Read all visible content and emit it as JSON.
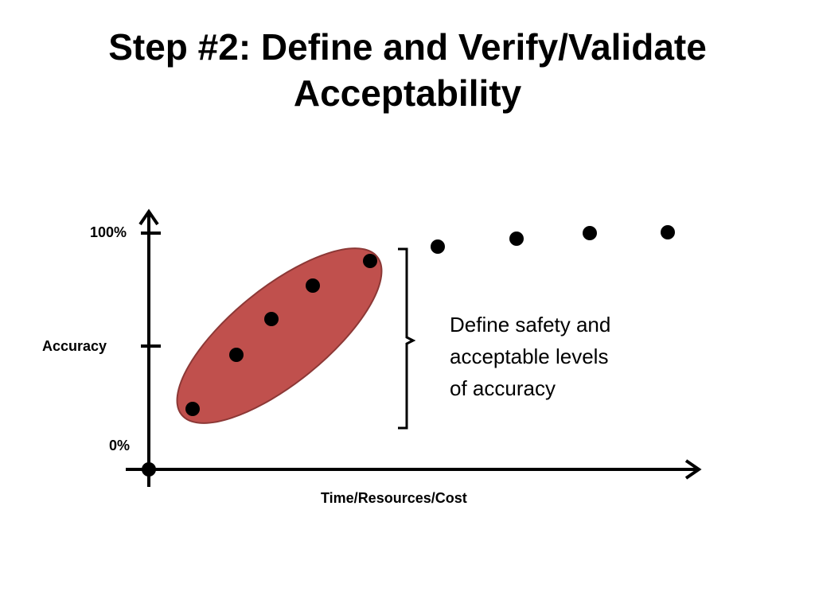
{
  "slide": {
    "title_line1": "Step #2: Define and Verify/Validate",
    "title_line2": "Acceptability"
  },
  "diagram": {
    "y_label": "Accuracy",
    "x_label": "Time/Resources/Cost",
    "y_tick_top": "100%",
    "y_tick_bottom": "0%",
    "note_lines": [
      "Define safety and",
      "acceptable levels",
      "of accuracy"
    ],
    "highlight_color": "#c0504d",
    "highlight_border": "#8c3836",
    "point_color": "#000000",
    "highlighted_point_count": 5,
    "other_point_count": 4
  }
}
